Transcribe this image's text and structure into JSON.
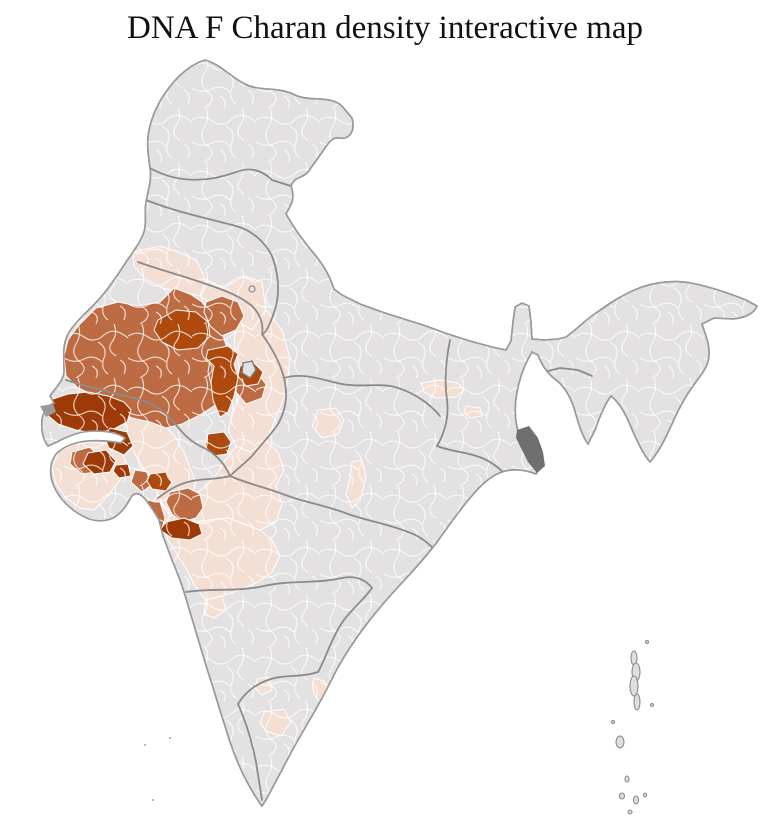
{
  "title": "DNA F Charan density interactive map",
  "page_background": "#ffffff",
  "chart_data": {
    "type": "choropleth",
    "title": "DNA F Charan density interactive map",
    "map_subject": "India, district-level density shading",
    "region_labels_visible": false,
    "legend_visible": false,
    "color_scale": {
      "no_data": "#e3e1e1",
      "low": "#f3dfd4",
      "medium": "#bd6b42",
      "high": "#ae4a0e",
      "very_high": "#9d3a07"
    },
    "boundary_colors": {
      "district_border": "#ffffff",
      "state_border": "#8b8b8b",
      "outer_border": "#9a9a9a",
      "river_delta": "#6f6f6f"
    },
    "observations": [
      {
        "id": "nw-band",
        "approx_location": "Punjab / north Rajasthan border belt",
        "level": "low"
      },
      {
        "id": "north-raj",
        "approx_location": "Haryana and northeast Rajasthan belt",
        "level": "low"
      },
      {
        "id": "east-raj",
        "approx_location": "eastern Rajasthan belt",
        "level": "low"
      },
      {
        "id": "west-mp",
        "approx_location": "southeast Rajasthan / west Madhya Pradesh",
        "level": "low"
      },
      {
        "id": "maha",
        "approx_location": "north-central Maharashtra",
        "level": "low"
      },
      {
        "id": "maha-s",
        "approx_location": "west Maharashtra fringe",
        "level": "low"
      },
      {
        "id": "kathiawar",
        "approx_location": "Saurashtra peninsula, Gujarat",
        "level": "low"
      },
      {
        "id": "guj-main",
        "approx_location": "mainland Gujarat",
        "level": "low"
      },
      {
        "id": "guj-coast",
        "approx_location": "south Gujarat coastal strip",
        "level": "low"
      },
      {
        "id": "mp-spot1",
        "approx_location": "north Madhya Pradesh pocket",
        "level": "low"
      },
      {
        "id": "mp-spot2",
        "approx_location": "central Madhya Pradesh pocket",
        "level": "low"
      },
      {
        "id": "up-spot",
        "approx_location": "south Uttar Pradesh pocket",
        "level": "low"
      },
      {
        "id": "bihar-spot",
        "approx_location": "Bihar pocket",
        "level": "low"
      },
      {
        "id": "tn-spot1",
        "approx_location": "west Tamil Nadu pocket",
        "level": "low"
      },
      {
        "id": "tn-coast",
        "approx_location": "Tamil Nadu coastal pocket",
        "level": "low"
      },
      {
        "id": "tn-spot2",
        "approx_location": "south-central Tamil Nadu pocket",
        "level": "low"
      },
      {
        "id": "raj-core",
        "approx_location": "west and central Rajasthan (Thar belt)",
        "level": "medium"
      },
      {
        "id": "jaipur-med",
        "approx_location": "Jaipur region, Rajasthan",
        "level": "medium"
      },
      {
        "id": "delhi-west-med",
        "approx_location": "districts west of Delhi",
        "level": "medium"
      },
      {
        "id": "delhi-east-med",
        "approx_location": "districts east of Delhi",
        "level": "medium"
      },
      {
        "id": "nashik-med",
        "approx_location": "Nashik region, Maharashtra",
        "level": "medium"
      },
      {
        "id": "konkan-med",
        "approx_location": "north Konkan coast, Maharashtra",
        "level": "medium"
      },
      {
        "id": "saurashtra-med",
        "approx_location": "south Saurashtra, Gujarat",
        "level": "medium"
      },
      {
        "id": "guj-se-med",
        "approx_location": "southeast Gujarat pocket",
        "level": "medium"
      },
      {
        "id": "nagaur-high",
        "approx_location": "Nagaur-Jodhpur region, Rajasthan",
        "level": "high"
      },
      {
        "id": "delhi-high",
        "approx_location": "cluster south of Delhi (Alwar side)",
        "level": "high"
      },
      {
        "id": "ghaziabad-high",
        "approx_location": "district just east of Delhi",
        "level": "high"
      },
      {
        "id": "chittor-high",
        "approx_location": "south Rajasthan pocket",
        "level": "high"
      },
      {
        "id": "surat-high",
        "approx_location": "Surat region, Gujarat",
        "level": "high"
      },
      {
        "id": "kutch-vh",
        "approx_location": "Kutch, Gujarat",
        "level": "very_high"
      },
      {
        "id": "saur-vh1",
        "approx_location": "north-central Saurashtra, Gujarat",
        "level": "very_high"
      },
      {
        "id": "saur-vh2",
        "approx_location": "central Saurashtra, Gujarat",
        "level": "very_high"
      },
      {
        "id": "saur-vh3",
        "approx_location": "small central Saurashtra district",
        "level": "very_high"
      },
      {
        "id": "pune-vh",
        "approx_location": "Pune region, Maharashtra",
        "level": "very_high"
      }
    ],
    "other_features": [
      {
        "name": "Sundarbans delta",
        "rendering": "dark gray hatch, West Bengal coast"
      },
      {
        "name": "Andaman and Nicobar Islands",
        "rendering": "gray island chain, lower right"
      },
      {
        "name": "Lakshadweep",
        "rendering": "tiny gray specks, lower left"
      },
      {
        "name": "Delhi",
        "rendering": "gray district with darker outline"
      },
      {
        "name": "Sir Creek stub",
        "rendering": "small gray mark west of Kutch"
      }
    ]
  }
}
